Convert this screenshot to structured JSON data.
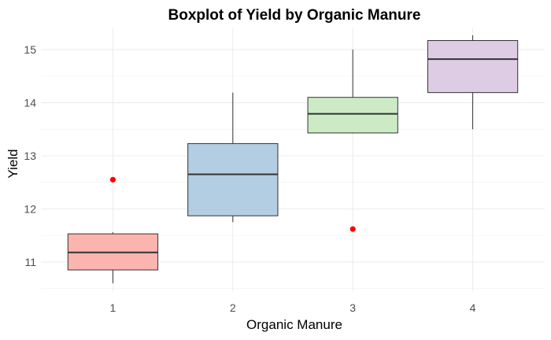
{
  "chart_data": {
    "type": "box",
    "title": "Boxplot of Yield by Organic Manure",
    "xlabel": "Organic Manure",
    "ylabel": "Yield",
    "categories": [
      "1",
      "2",
      "3",
      "4"
    ],
    "ylim": [
      10.45,
      15.4
    ],
    "yticks": [
      11,
      12,
      13,
      14,
      15
    ],
    "grid": true,
    "legend": "none",
    "outlier_color": "#ff0000",
    "boxes": [
      {
        "category": "1",
        "min": 10.6,
        "q1": 10.85,
        "median": 11.18,
        "q3": 11.53,
        "max": 11.56,
        "outliers": [
          12.55
        ],
        "fill": "#fbb4ae"
      },
      {
        "category": "2",
        "min": 11.75,
        "q1": 11.87,
        "median": 12.65,
        "q3": 13.23,
        "max": 14.19,
        "outliers": [],
        "fill": "#b3cde3"
      },
      {
        "category": "3",
        "min": 13.42,
        "q1": 13.43,
        "median": 13.79,
        "q3": 14.1,
        "max": 15.0,
        "outliers": [
          11.62
        ],
        "fill": "#ccebc5"
      },
      {
        "category": "4",
        "min": 13.5,
        "q1": 14.19,
        "median": 14.82,
        "q3": 15.17,
        "max": 15.27,
        "outliers": [],
        "fill": "#decbe4"
      }
    ]
  }
}
